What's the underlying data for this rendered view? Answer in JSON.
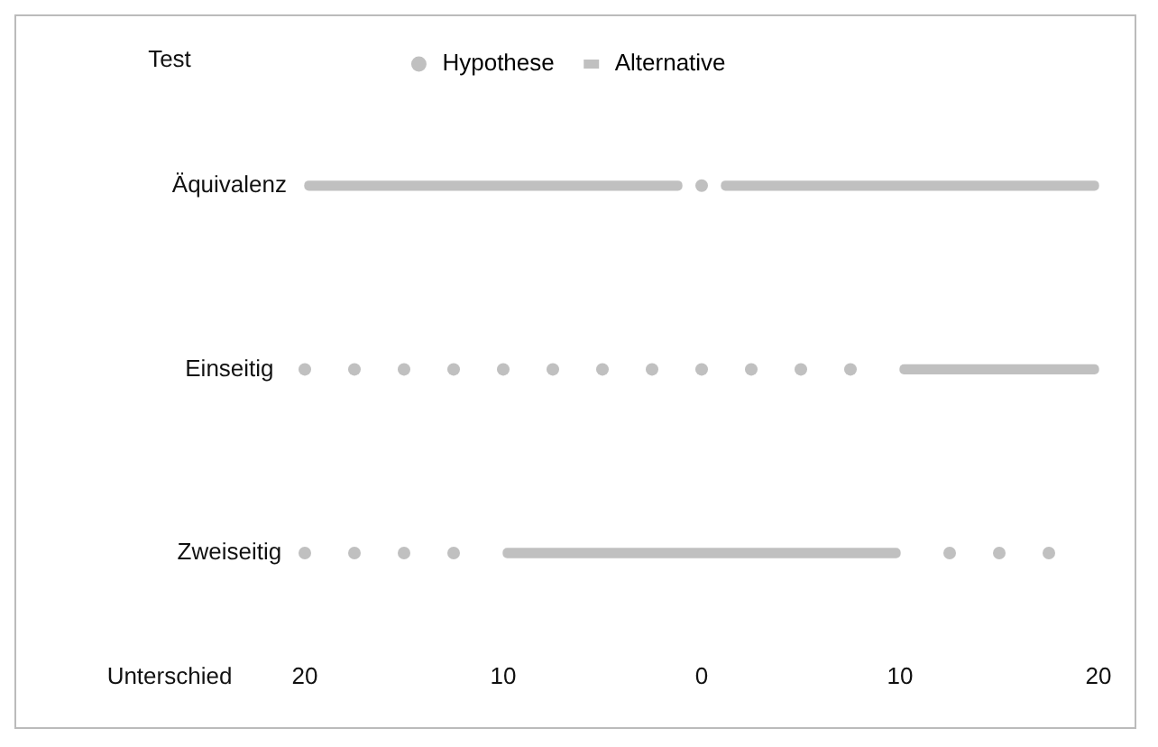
{
  "chart_data": {
    "type": "bar",
    "orientation": "horizontal",
    "xlabel": "Unterschied",
    "ylabel": "Test",
    "categories": [
      "Äquivalenz",
      "Einseitig",
      "Zweiseitig"
    ],
    "xlim": [
      -20,
      20
    ],
    "xticks": [
      {
        "value": -20,
        "label": "20"
      },
      {
        "value": -10,
        "label": "10"
      },
      0,
      10,
      20
    ],
    "grid": false,
    "legend": "top",
    "series": [
      {
        "name": "Hypothese",
        "type": "scatter",
        "marker": "circle",
        "color": "#c0c0c0",
        "values": [
          0,
          -20,
          -20
        ]
      },
      {
        "type": "scatter",
        "marker": "circle",
        "color": "#c0c0c0",
        "values": [
          null,
          -17.5,
          -17.5
        ]
      },
      {
        "type": "scatter",
        "marker": "circle",
        "color": "#c0c0c0",
        "values": [
          null,
          -15,
          -15
        ]
      },
      {
        "type": "scatter",
        "marker": "circle",
        "color": "#c0c0c0",
        "values": [
          null,
          -12.5,
          -12.5
        ]
      },
      {
        "type": "scatter",
        "marker": "circle",
        "color": "#c0c0c0",
        "values": [
          null,
          -10,
          12.5
        ]
      },
      {
        "type": "scatter",
        "marker": "circle",
        "color": "#c0c0c0",
        "values": [
          null,
          -7.5,
          15
        ]
      },
      {
        "type": "scatter",
        "marker": "circle",
        "color": "#c0c0c0",
        "values": [
          null,
          -5,
          17.5
        ]
      },
      {
        "type": "scatter",
        "marker": "circle",
        "color": "#c0c0c0",
        "values": [
          null,
          -2.5,
          null
        ]
      },
      {
        "type": "scatter",
        "marker": "circle",
        "color": "#c0c0c0",
        "values": [
          null,
          0,
          null
        ]
      },
      {
        "type": "scatter",
        "marker": "circle",
        "color": "#c0c0c0",
        "values": [
          null,
          2.5,
          null
        ]
      },
      {
        "type": "scatter",
        "marker": "circle",
        "color": "#c0c0c0",
        "values": [
          null,
          5,
          null
        ]
      },
      {
        "type": "scatter",
        "marker": "circle",
        "color": "#c0c0c0",
        "values": [
          null,
          7.5,
          null
        ]
      },
      {
        "name": "Alternative",
        "color": "#c0c0c0",
        "base": [
          -20,
          10,
          -10
        ],
        "values": [
          19,
          10,
          20
        ]
      },
      {
        "color": "#c0c0c0",
        "base": [
          1,
          null,
          null
        ],
        "values": [
          19,
          null,
          null
        ]
      }
    ]
  }
}
